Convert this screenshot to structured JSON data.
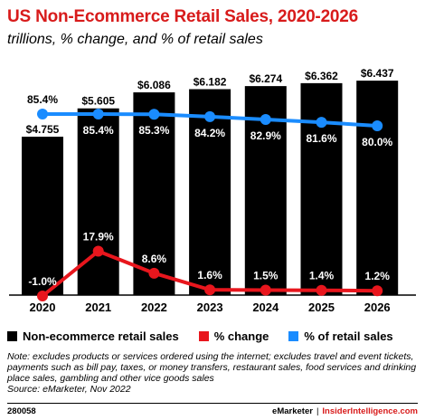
{
  "title": "US Non-Ecommerce Retail Sales, 2020-2026",
  "subtitle": "trillions, % change, and % of retail sales",
  "chart_data": {
    "type": "bar",
    "categories": [
      "2020",
      "2021",
      "2022",
      "2023",
      "2024",
      "2025",
      "2026"
    ],
    "series": [
      {
        "name": "Non-ecommerce retail sales",
        "type": "bar",
        "color": "#000000",
        "values": [
          4.755,
          5.605,
          6.086,
          6.182,
          6.274,
          6.362,
          6.437
        ],
        "labels": [
          "$4.755",
          "$5.605",
          "$6.086",
          "$6.182",
          "$6.274",
          "$6.362",
          "$6.437"
        ]
      },
      {
        "name": "% change",
        "type": "line",
        "color": "#e8161d",
        "values": [
          -1.0,
          17.9,
          8.6,
          1.6,
          1.5,
          1.4,
          1.2
        ],
        "labels": [
          "-1.0%",
          "17.9%",
          "8.6%",
          "1.6%",
          "1.5%",
          "1.4%",
          "1.2%"
        ]
      },
      {
        "name": "% of retail sales",
        "type": "line",
        "color": "#1a8cff",
        "values": [
          85.4,
          85.4,
          85.3,
          84.2,
          82.9,
          81.6,
          80.0
        ],
        "labels": [
          "85.4%",
          "85.4%",
          "85.3%",
          "84.2%",
          "82.9%",
          "81.6%",
          "80.0%"
        ]
      }
    ],
    "legend_position": "bottom",
    "grid": false
  },
  "note": "Note: excludes products or services ordered using the internet; excludes travel and event tickets, payments such as bill pay, taxes, or money transfers, restaurant sales, food services and drinking place sales, gambling and other vice goods sales",
  "source": "Source: eMarketer, Nov 2022",
  "footer": {
    "chart_id": "280058",
    "brand_left": "eMarketer",
    "separator": "|",
    "brand_right": "InsiderIntelligence.com"
  }
}
